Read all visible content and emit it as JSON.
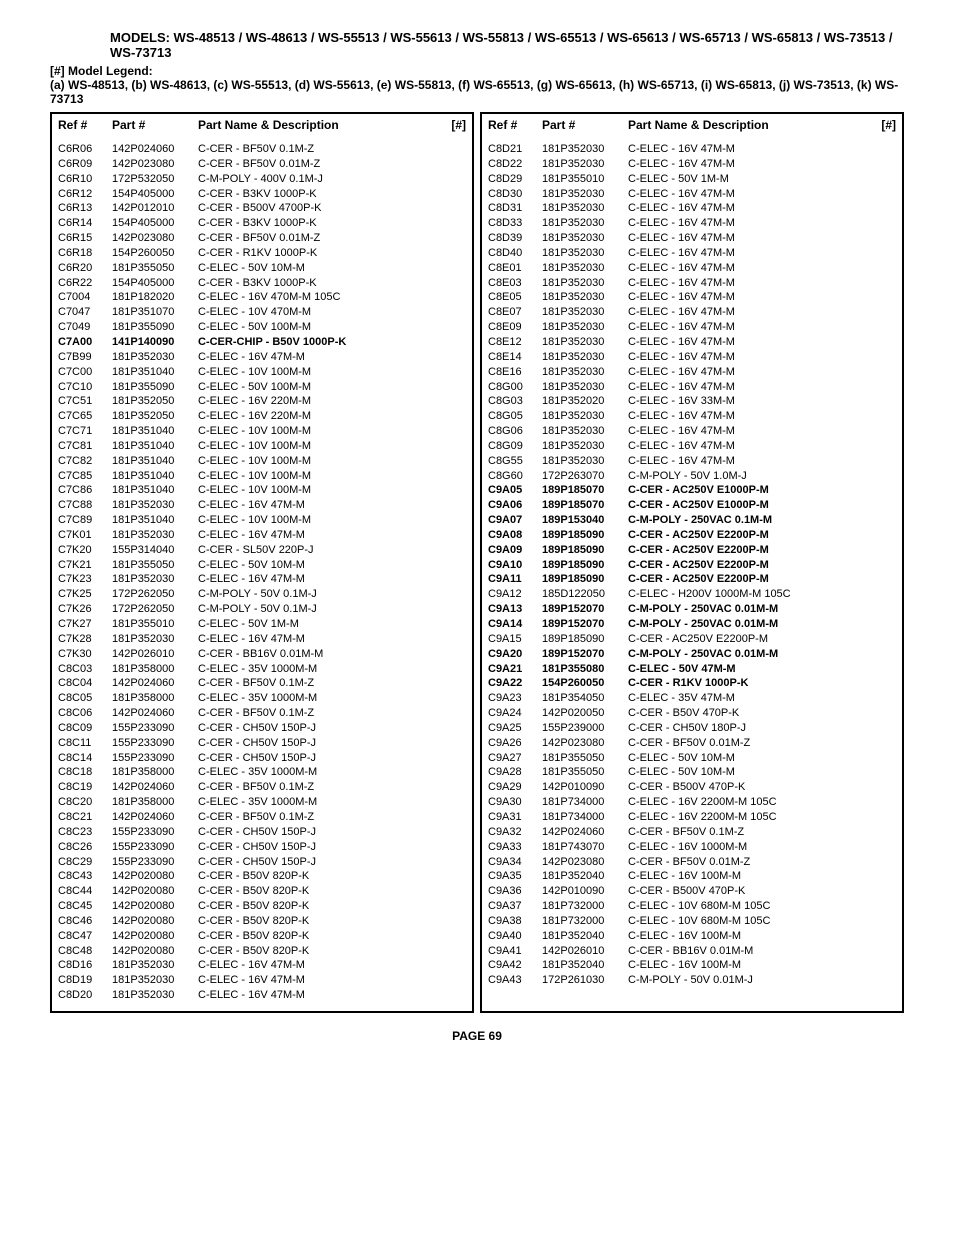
{
  "models_header": "MODELS: WS-48513 / WS-48613 / WS-55513 / WS-55613 / WS-55813 / WS-65513 / WS-65613 / WS-65713 / WS-65813 / WS-73513 / WS-73713",
  "legend_title": "[#] Model Legend:",
  "legend_text": "(a) WS-48513, (b)  WS-48613, (c) WS-55513, (d) WS-55613, (e) WS-55813, (f) WS-65513, (g) WS-65613, (h) WS-65713,  (i) WS-65813, (j) WS-73513, (k) WS-73713",
  "col_headers": {
    "ref": "Ref #",
    "part": "Part #",
    "desc": "Part Name & Description",
    "num": "[#]"
  },
  "page_number": "PAGE 69",
  "left_rows": [
    {
      "ref": "C6R06",
      "part": "142P024060",
      "desc": "C-CER - BF50V 0.1M-Z"
    },
    {
      "ref": "C6R09",
      "part": "142P023080",
      "desc": "C-CER - BF50V 0.01M-Z"
    },
    {
      "ref": "C6R10",
      "part": "172P532050",
      "desc": "C-M-POLY - 400V 0.1M-J"
    },
    {
      "ref": "C6R12",
      "part": "154P405000",
      "desc": "C-CER - B3KV 1000P-K"
    },
    {
      "ref": "C6R13",
      "part": "142P012010",
      "desc": "C-CER - B500V 4700P-K"
    },
    {
      "ref": "C6R14",
      "part": "154P405000",
      "desc": "C-CER - B3KV 1000P-K"
    },
    {
      "ref": "C6R15",
      "part": "142P023080",
      "desc": "C-CER - BF50V 0.01M-Z"
    },
    {
      "ref": "C6R18",
      "part": "154P260050",
      "desc": "C-CER - R1KV 1000P-K"
    },
    {
      "ref": "C6R20",
      "part": "181P355050",
      "desc": "C-ELEC - 50V 10M-M"
    },
    {
      "ref": "C6R22",
      "part": "154P405000",
      "desc": "C-CER - B3KV 1000P-K"
    },
    {
      "ref": "C7004",
      "part": "181P182020",
      "desc": "C-ELEC - 16V 470M-M 105C"
    },
    {
      "ref": "C7047",
      "part": "181P351070",
      "desc": "C-ELEC - 10V 470M-M"
    },
    {
      "ref": "C7049",
      "part": "181P355090",
      "desc": "C-ELEC - 50V 100M-M"
    },
    {
      "ref": "C7A00",
      "part": "141P140090",
      "desc": "C-CER-CHIP - B50V 1000P-K",
      "bold": true
    },
    {
      "ref": "C7B99",
      "part": "181P352030",
      "desc": "C-ELEC - 16V 47M-M"
    },
    {
      "ref": "C7C00",
      "part": "181P351040",
      "desc": "C-ELEC - 10V 100M-M"
    },
    {
      "ref": "C7C10",
      "part": "181P355090",
      "desc": "C-ELEC - 50V 100M-M"
    },
    {
      "ref": "C7C51",
      "part": "181P352050",
      "desc": "C-ELEC - 16V 220M-M"
    },
    {
      "ref": "C7C65",
      "part": "181P352050",
      "desc": "C-ELEC - 16V 220M-M"
    },
    {
      "ref": "C7C71",
      "part": "181P351040",
      "desc": "C-ELEC - 10V 100M-M"
    },
    {
      "ref": "C7C81",
      "part": "181P351040",
      "desc": "C-ELEC - 10V 100M-M"
    },
    {
      "ref": "C7C82",
      "part": "181P351040",
      "desc": "C-ELEC - 10V 100M-M"
    },
    {
      "ref": "C7C85",
      "part": "181P351040",
      "desc": "C-ELEC - 10V 100M-M"
    },
    {
      "ref": "C7C86",
      "part": "181P351040",
      "desc": "C-ELEC - 10V 100M-M"
    },
    {
      "ref": "C7C88",
      "part": "181P352030",
      "desc": "C-ELEC - 16V 47M-M"
    },
    {
      "ref": "C7C89",
      "part": "181P351040",
      "desc": "C-ELEC - 10V 100M-M"
    },
    {
      "ref": "C7K01",
      "part": "181P352030",
      "desc": "C-ELEC - 16V 47M-M"
    },
    {
      "ref": "C7K20",
      "part": "155P314040",
      "desc": "C-CER - SL50V 220P-J"
    },
    {
      "ref": "C7K21",
      "part": "181P355050",
      "desc": "C-ELEC - 50V 10M-M"
    },
    {
      "ref": "C7K23",
      "part": "181P352030",
      "desc": "C-ELEC - 16V 47M-M"
    },
    {
      "ref": "C7K25",
      "part": "172P262050",
      "desc": "C-M-POLY - 50V 0.1M-J"
    },
    {
      "ref": "C7K26",
      "part": "172P262050",
      "desc": "C-M-POLY - 50V 0.1M-J"
    },
    {
      "ref": "C7K27",
      "part": "181P355010",
      "desc": "C-ELEC - 50V 1M-M"
    },
    {
      "ref": "C7K28",
      "part": "181P352030",
      "desc": "C-ELEC - 16V 47M-M"
    },
    {
      "ref": "C7K30",
      "part": "142P026010",
      "desc": "C-CER - BB16V 0.01M-M"
    },
    {
      "ref": "C8C03",
      "part": "181P358000",
      "desc": "C-ELEC - 35V 1000M-M"
    },
    {
      "ref": "C8C04",
      "part": "142P024060",
      "desc": "C-CER - BF50V 0.1M-Z"
    },
    {
      "ref": "C8C05",
      "part": "181P358000",
      "desc": "C-ELEC - 35V 1000M-M"
    },
    {
      "ref": "C8C06",
      "part": "142P024060",
      "desc": "C-CER - BF50V 0.1M-Z"
    },
    {
      "ref": "C8C09",
      "part": "155P233090",
      "desc": "C-CER - CH50V 150P-J"
    },
    {
      "ref": "C8C11",
      "part": "155P233090",
      "desc": "C-CER - CH50V 150P-J"
    },
    {
      "ref": "C8C14",
      "part": "155P233090",
      "desc": "C-CER - CH50V 150P-J"
    },
    {
      "ref": "C8C18",
      "part": "181P358000",
      "desc": "C-ELEC - 35V 1000M-M"
    },
    {
      "ref": "C8C19",
      "part": "142P024060",
      "desc": "C-CER - BF50V 0.1M-Z"
    },
    {
      "ref": "C8C20",
      "part": "181P358000",
      "desc": "C-ELEC - 35V 1000M-M"
    },
    {
      "ref": "C8C21",
      "part": "142P024060",
      "desc": "C-CER - BF50V 0.1M-Z"
    },
    {
      "ref": "C8C23",
      "part": "155P233090",
      "desc": "C-CER - CH50V 150P-J"
    },
    {
      "ref": "C8C26",
      "part": "155P233090",
      "desc": "C-CER - CH50V 150P-J"
    },
    {
      "ref": "C8C29",
      "part": "155P233090",
      "desc": "C-CER - CH50V 150P-J"
    },
    {
      "ref": "C8C43",
      "part": "142P020080",
      "desc": "C-CER - B50V 820P-K"
    },
    {
      "ref": "C8C44",
      "part": "142P020080",
      "desc": "C-CER - B50V 820P-K"
    },
    {
      "ref": "C8C45",
      "part": "142P020080",
      "desc": "C-CER - B50V 820P-K"
    },
    {
      "ref": "C8C46",
      "part": "142P020080",
      "desc": "C-CER - B50V 820P-K"
    },
    {
      "ref": "C8C47",
      "part": "142P020080",
      "desc": "C-CER - B50V 820P-K"
    },
    {
      "ref": "C8C48",
      "part": "142P020080",
      "desc": "C-CER - B50V 820P-K"
    },
    {
      "ref": "C8D16",
      "part": "181P352030",
      "desc": "C-ELEC - 16V 47M-M"
    },
    {
      "ref": "C8D19",
      "part": "181P352030",
      "desc": "C-ELEC - 16V 47M-M"
    },
    {
      "ref": "C8D20",
      "part": "181P352030",
      "desc": "C-ELEC - 16V 47M-M"
    }
  ],
  "right_rows": [
    {
      "ref": "C8D21",
      "part": "181P352030",
      "desc": "C-ELEC - 16V 47M-M"
    },
    {
      "ref": "C8D22",
      "part": "181P352030",
      "desc": "C-ELEC - 16V 47M-M"
    },
    {
      "ref": "C8D29",
      "part": "181P355010",
      "desc": "C-ELEC - 50V 1M-M"
    },
    {
      "ref": "C8D30",
      "part": "181P352030",
      "desc": "C-ELEC - 16V 47M-M"
    },
    {
      "ref": "C8D31",
      "part": "181P352030",
      "desc": "C-ELEC - 16V 47M-M"
    },
    {
      "ref": "C8D33",
      "part": "181P352030",
      "desc": "C-ELEC - 16V 47M-M"
    },
    {
      "ref": "C8D39",
      "part": "181P352030",
      "desc": "C-ELEC - 16V 47M-M"
    },
    {
      "ref": "C8D40",
      "part": "181P352030",
      "desc": "C-ELEC - 16V 47M-M"
    },
    {
      "ref": "C8E01",
      "part": "181P352030",
      "desc": "C-ELEC - 16V 47M-M"
    },
    {
      "ref": "C8E03",
      "part": "181P352030",
      "desc": "C-ELEC - 16V 47M-M"
    },
    {
      "ref": "C8E05",
      "part": "181P352030",
      "desc": "C-ELEC - 16V 47M-M"
    },
    {
      "ref": "C8E07",
      "part": "181P352030",
      "desc": "C-ELEC - 16V 47M-M"
    },
    {
      "ref": "C8E09",
      "part": "181P352030",
      "desc": "C-ELEC - 16V 47M-M"
    },
    {
      "ref": "C8E12",
      "part": "181P352030",
      "desc": "C-ELEC - 16V 47M-M"
    },
    {
      "ref": "C8E14",
      "part": "181P352030",
      "desc": "C-ELEC - 16V 47M-M"
    },
    {
      "ref": "C8E16",
      "part": "181P352030",
      "desc": "C-ELEC - 16V 47M-M"
    },
    {
      "ref": "C8G00",
      "part": "181P352030",
      "desc": "C-ELEC - 16V 47M-M"
    },
    {
      "ref": "C8G03",
      "part": "181P352020",
      "desc": "C-ELEC - 16V 33M-M"
    },
    {
      "ref": "C8G05",
      "part": "181P352030",
      "desc": "C-ELEC - 16V 47M-M"
    },
    {
      "ref": "C8G06",
      "part": "181P352030",
      "desc": "C-ELEC - 16V 47M-M"
    },
    {
      "ref": "C8G09",
      "part": "181P352030",
      "desc": "C-ELEC - 16V 47M-M"
    },
    {
      "ref": "C8G55",
      "part": "181P352030",
      "desc": "C-ELEC - 16V 47M-M"
    },
    {
      "ref": "C8G60",
      "part": "172P263070",
      "desc": "C-M-POLY - 50V 1.0M-J"
    },
    {
      "ref": "C9A05",
      "part": "189P185070",
      "desc": "C-CER - AC250V E1000P-M",
      "bold": true
    },
    {
      "ref": "C9A06",
      "part": "189P185070",
      "desc": "C-CER - AC250V E1000P-M",
      "bold": true
    },
    {
      "ref": "C9A07",
      "part": "189P153040",
      "desc": "C-M-POLY - 250VAC 0.1M-M",
      "bold": true
    },
    {
      "ref": "C9A08",
      "part": "189P185090",
      "desc": "C-CER - AC250V E2200P-M",
      "bold": true
    },
    {
      "ref": "C9A09",
      "part": "189P185090",
      "desc": "C-CER - AC250V E2200P-M",
      "bold": true
    },
    {
      "ref": "C9A10",
      "part": "189P185090",
      "desc": "C-CER - AC250V E2200P-M",
      "bold": true
    },
    {
      "ref": "C9A11",
      "part": "189P185090",
      "desc": "C-CER - AC250V E2200P-M",
      "bold": true
    },
    {
      "ref": "C9A12",
      "part": "185D122050",
      "desc": "C-ELEC - H200V 1000M-M 105C"
    },
    {
      "ref": "C9A13",
      "part": "189P152070",
      "desc": "C-M-POLY - 250VAC 0.01M-M",
      "bold": true
    },
    {
      "ref": "C9A14",
      "part": "189P152070",
      "desc": "C-M-POLY - 250VAC 0.01M-M",
      "bold": true
    },
    {
      "ref": "C9A15",
      "part": "189P185090",
      "desc": "C-CER - AC250V E2200P-M"
    },
    {
      "ref": "C9A20",
      "part": "189P152070",
      "desc": "C-M-POLY - 250VAC 0.01M-M",
      "bold": true
    },
    {
      "ref": "C9A21",
      "part": "181P355080",
      "desc": "C-ELEC - 50V 47M-M",
      "bold": true
    },
    {
      "ref": "C9A22",
      "part": "154P260050",
      "desc": "C-CER - R1KV 1000P-K",
      "bold": true
    },
    {
      "ref": "C9A23",
      "part": "181P354050",
      "desc": "C-ELEC - 35V 47M-M"
    },
    {
      "ref": "C9A24",
      "part": "142P020050",
      "desc": "C-CER - B50V 470P-K"
    },
    {
      "ref": "C9A25",
      "part": "155P239000",
      "desc": "C-CER - CH50V 180P-J"
    },
    {
      "ref": "C9A26",
      "part": "142P023080",
      "desc": "C-CER - BF50V 0.01M-Z"
    },
    {
      "ref": "C9A27",
      "part": "181P355050",
      "desc": "C-ELEC - 50V 10M-M"
    },
    {
      "ref": "C9A28",
      "part": "181P355050",
      "desc": "C-ELEC - 50V 10M-M"
    },
    {
      "ref": "C9A29",
      "part": "142P010090",
      "desc": "C-CER - B500V 470P-K"
    },
    {
      "ref": "C9A30",
      "part": "181P734000",
      "desc": "C-ELEC - 16V 2200M-M 105C"
    },
    {
      "ref": "C9A31",
      "part": "181P734000",
      "desc": "C-ELEC - 16V 2200M-M 105C"
    },
    {
      "ref": "C9A32",
      "part": "142P024060",
      "desc": "C-CER - BF50V 0.1M-Z"
    },
    {
      "ref": "C9A33",
      "part": "181P743070",
      "desc": "C-ELEC - 16V 1000M-M"
    },
    {
      "ref": "C9A34",
      "part": "142P023080",
      "desc": "C-CER - BF50V 0.01M-Z"
    },
    {
      "ref": "C9A35",
      "part": "181P352040",
      "desc": "C-ELEC - 16V 100M-M"
    },
    {
      "ref": "C9A36",
      "part": "142P010090",
      "desc": "C-CER - B500V 470P-K"
    },
    {
      "ref": "C9A37",
      "part": "181P732000",
      "desc": "C-ELEC - 10V 680M-M 105C"
    },
    {
      "ref": "C9A38",
      "part": "181P732000",
      "desc": "C-ELEC - 10V 680M-M 105C"
    },
    {
      "ref": "C9A40",
      "part": "181P352040",
      "desc": "C-ELEC - 16V 100M-M"
    },
    {
      "ref": "C9A41",
      "part": "142P026010",
      "desc": "C-CER - BB16V 0.01M-M"
    },
    {
      "ref": "C9A42",
      "part": "181P352040",
      "desc": "C-ELEC - 16V 100M-M"
    },
    {
      "ref": "C9A43",
      "part": "172P261030",
      "desc": "C-M-POLY - 50V 0.01M-J"
    }
  ]
}
